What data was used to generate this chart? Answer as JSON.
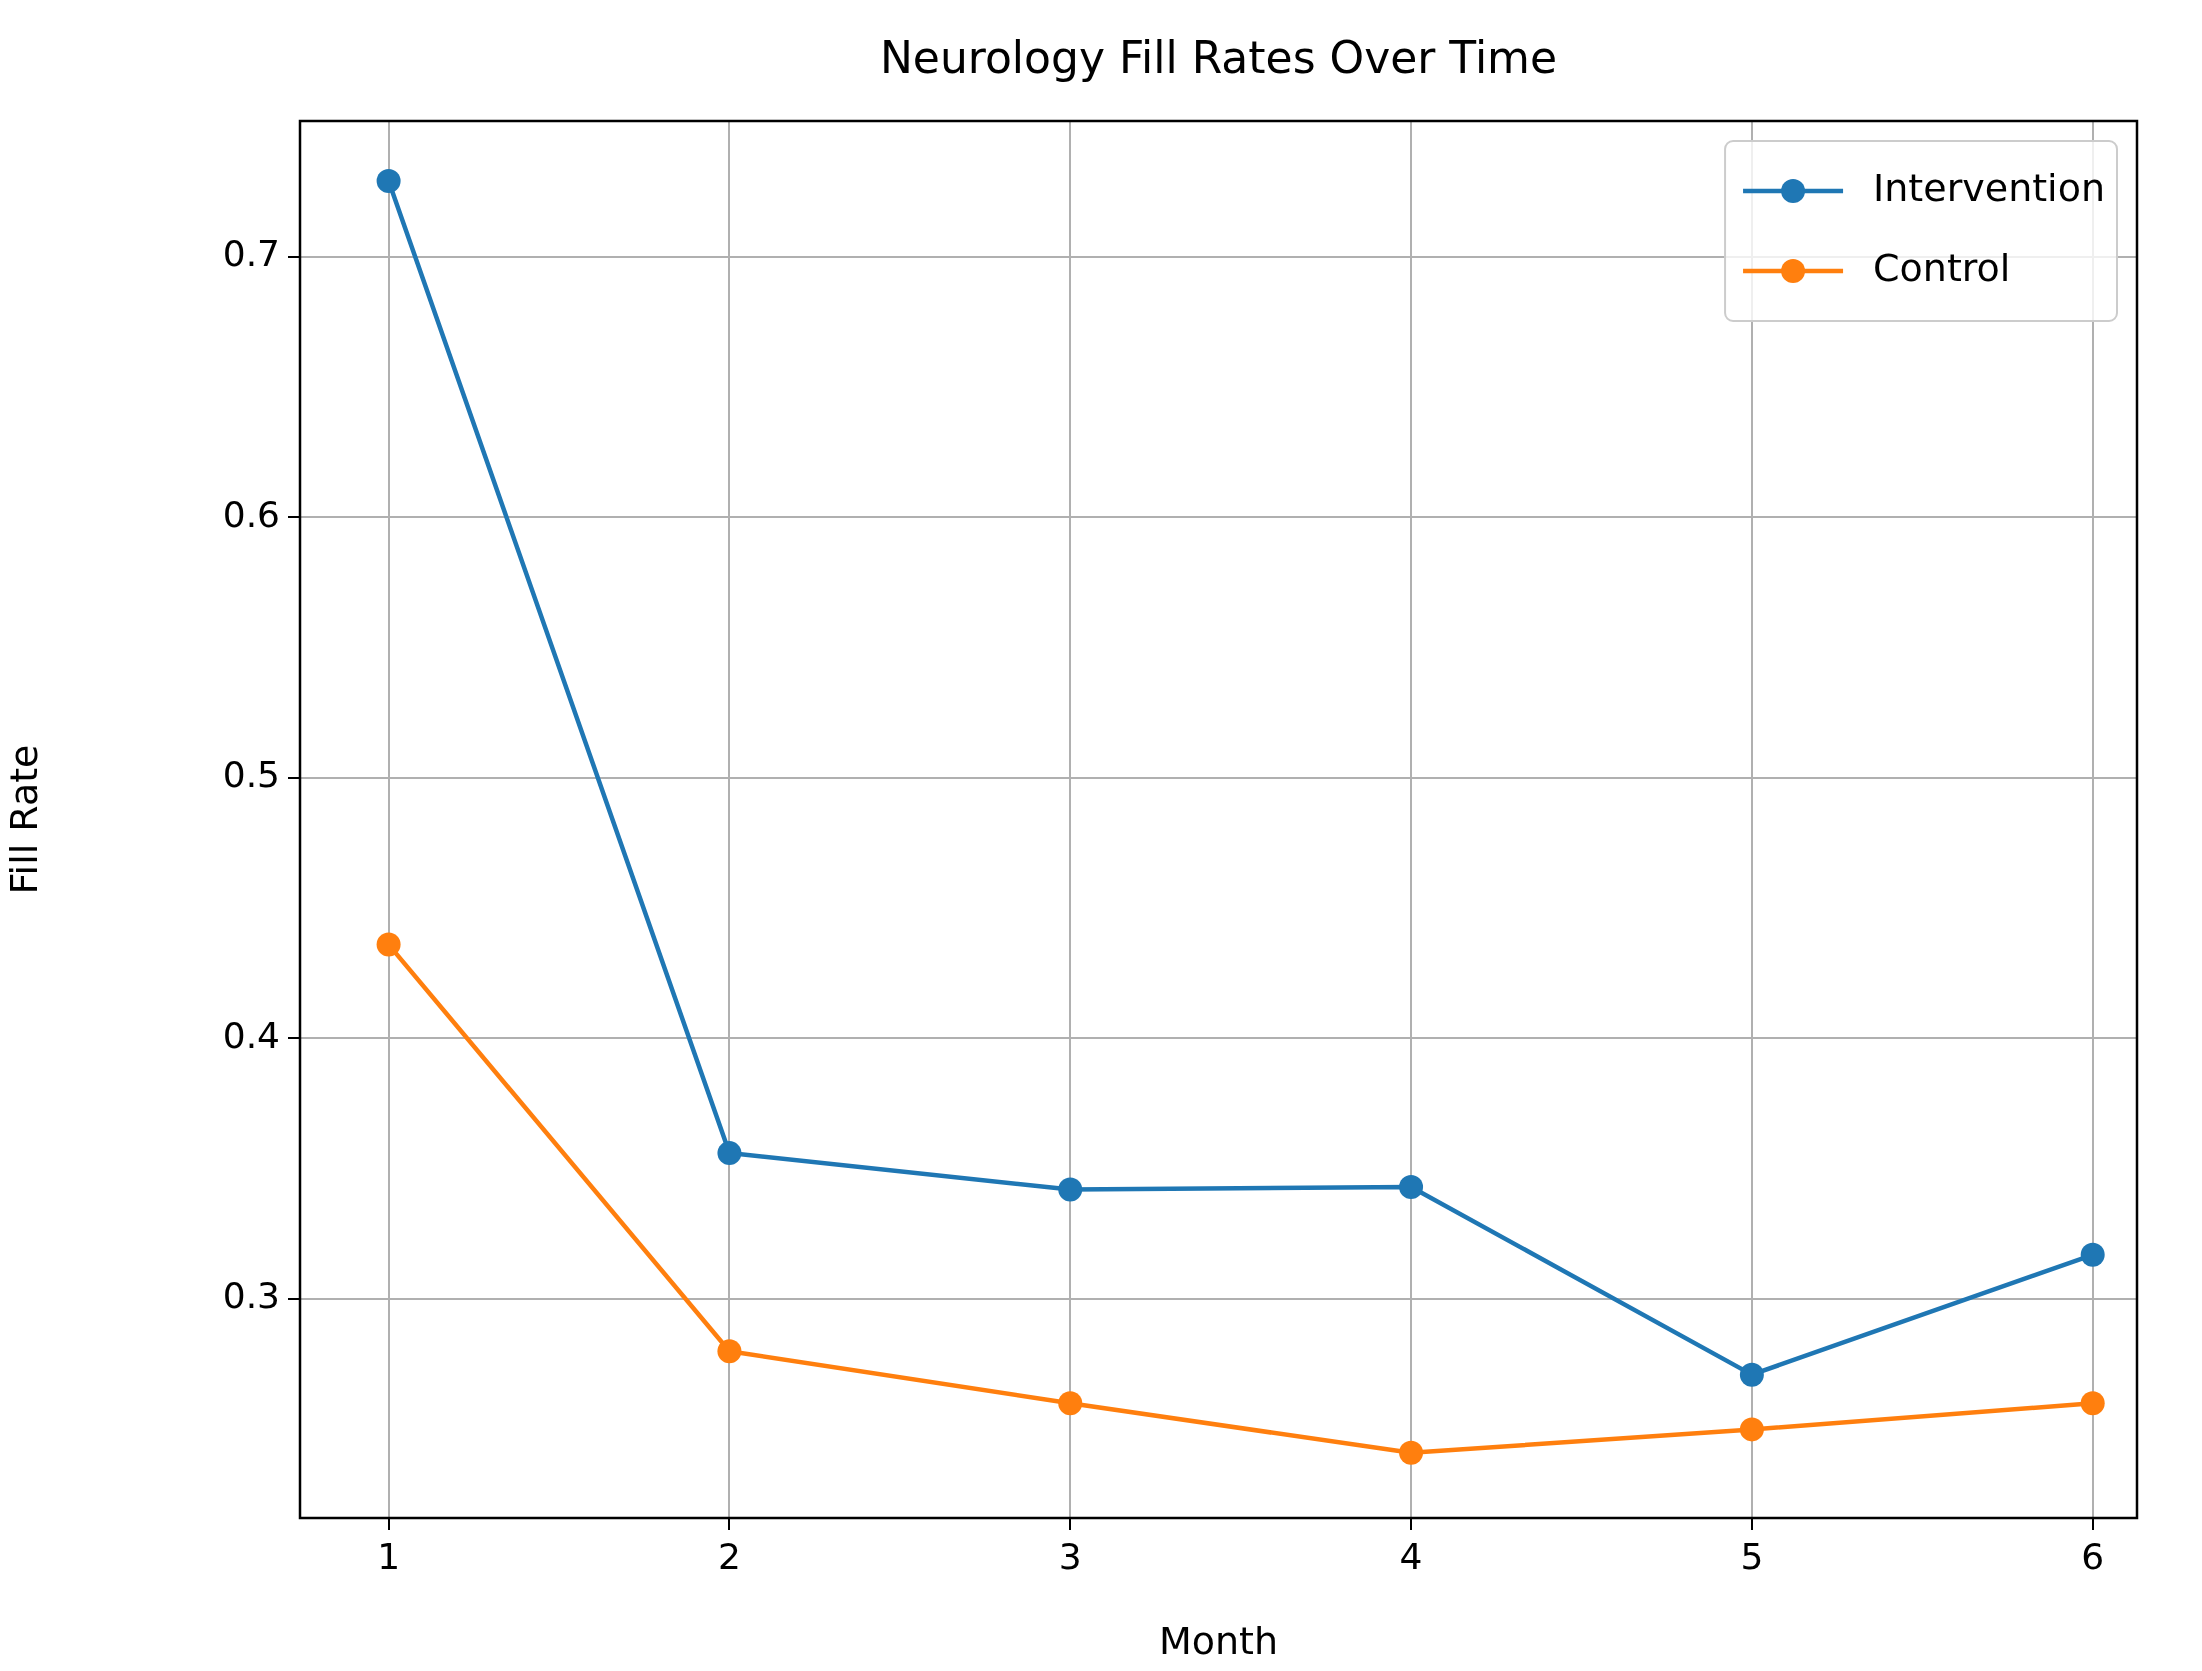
{
  "chart_data": {
    "type": "line",
    "title": "Neurology Fill Rates Over Time",
    "xlabel": "Month",
    "ylabel": "Fill Rate",
    "x": [
      1,
      2,
      3,
      4,
      5,
      6
    ],
    "series": [
      {
        "name": "Intervention",
        "color": "#1f77b4",
        "values": [
          0.729,
          0.356,
          0.342,
          0.343,
          0.271,
          0.317
        ]
      },
      {
        "name": "Control",
        "color": "#ff7f0e",
        "values": [
          0.436,
          0.28,
          0.26,
          0.241,
          0.25,
          0.26
        ]
      }
    ],
    "xlim": [
      0.74,
      6.13
    ],
    "xticks": [
      1,
      2,
      3,
      4,
      5,
      6
    ],
    "ylim": [
      0.216,
      0.752
    ],
    "yticks": [
      0.3,
      0.4,
      0.5,
      0.6,
      0.7
    ],
    "grid": true,
    "legend": "top right",
    "marker": "circle",
    "line_style": "solid"
  }
}
